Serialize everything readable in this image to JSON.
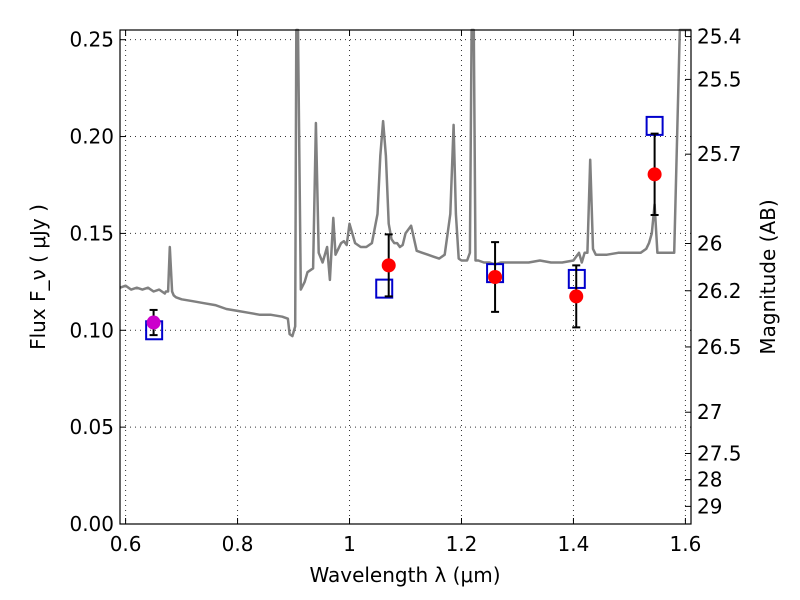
{
  "chart_data": {
    "type": "line",
    "xlabel": "Wavelength  λ (μm)",
    "ylabel": "Flux  F_ν  ( μJy )",
    "ylabel_right": "Magnitude (AB)",
    "xlim": [
      0.59,
      1.61
    ],
    "ylim": [
      0.0,
      0.255
    ],
    "grid": true,
    "x_ticks": [
      0.6,
      0.8,
      1.0,
      1.2,
      1.4,
      1.6
    ],
    "x_tick_labels": [
      "0.6",
      "0.8",
      "1",
      "1.2",
      "1.4",
      "1.6"
    ],
    "y_ticks": [
      0.0,
      0.05,
      0.1,
      0.15,
      0.2,
      0.25
    ],
    "y_tick_labels": [
      "0.00",
      "0.05",
      "0.10",
      "0.15",
      "0.20",
      "0.25"
    ],
    "right_ticks": [
      {
        "label": "25.4",
        "flux": 0.2516
      },
      {
        "label": "25.5",
        "flux": 0.2295
      },
      {
        "label": "25.7",
        "flux": 0.1909
      },
      {
        "label": "26",
        "flux": 0.1448
      },
      {
        "label": "26.2",
        "flux": 0.1204
      },
      {
        "label": "26.5",
        "flux": 0.0914
      },
      {
        "label": "27",
        "flux": 0.0577
      },
      {
        "label": "27.5",
        "flux": 0.0364
      },
      {
        "label": "28",
        "flux": 0.0229
      },
      {
        "label": "29",
        "flux": 0.0091
      }
    ],
    "series": [
      {
        "kind": "model-spectrum",
        "color": "#808080",
        "x": [
          0.59,
          0.6,
          0.61,
          0.62,
          0.63,
          0.64,
          0.65,
          0.66,
          0.67,
          0.672,
          0.676,
          0.679,
          0.683,
          0.686,
          0.69,
          0.7,
          0.72,
          0.74,
          0.76,
          0.78,
          0.8,
          0.82,
          0.84,
          0.86,
          0.88,
          0.89,
          0.893,
          0.898,
          0.903,
          0.905,
          0.908,
          0.913,
          0.92,
          0.925,
          0.935,
          0.94,
          0.945,
          0.952,
          0.96,
          0.965,
          0.971,
          0.975,
          0.985,
          0.99,
          0.995,
          1.0,
          1.01,
          1.02,
          1.03,
          1.04,
          1.05,
          1.055,
          1.06,
          1.065,
          1.07,
          1.075,
          1.08,
          1.085,
          1.09,
          1.095,
          1.1,
          1.11,
          1.12,
          1.13,
          1.14,
          1.15,
          1.16,
          1.17,
          1.18,
          1.186,
          1.19,
          1.195,
          1.2,
          1.21,
          1.215,
          1.218,
          1.222,
          1.225,
          1.23,
          1.24,
          1.25,
          1.26,
          1.27,
          1.28,
          1.3,
          1.32,
          1.34,
          1.36,
          1.38,
          1.4,
          1.41,
          1.415,
          1.42,
          1.425,
          1.43,
          1.435,
          1.44,
          1.46,
          1.48,
          1.5,
          1.52,
          1.53,
          1.535,
          1.54,
          1.545,
          1.55,
          1.56,
          1.57,
          1.58,
          1.59,
          1.6,
          1.61
        ],
        "y": [
          0.122,
          0.123,
          0.121,
          0.122,
          0.121,
          0.122,
          0.12,
          0.121,
          0.119,
          0.12,
          0.12,
          0.143,
          0.12,
          0.118,
          0.117,
          0.116,
          0.115,
          0.114,
          0.113,
          0.111,
          0.11,
          0.109,
          0.108,
          0.108,
          0.107,
          0.106,
          0.098,
          0.097,
          0.102,
          0.255,
          0.255,
          0.121,
          0.125,
          0.13,
          0.132,
          0.207,
          0.14,
          0.135,
          0.143,
          0.126,
          0.158,
          0.139,
          0.145,
          0.146,
          0.144,
          0.155,
          0.145,
          0.143,
          0.143,
          0.145,
          0.16,
          0.19,
          0.208,
          0.19,
          0.155,
          0.147,
          0.145,
          0.145,
          0.143,
          0.144,
          0.15,
          0.154,
          0.141,
          0.14,
          0.139,
          0.138,
          0.137,
          0.139,
          0.16,
          0.206,
          0.16,
          0.137,
          0.136,
          0.136,
          0.14,
          0.255,
          0.255,
          0.136,
          0.136,
          0.135,
          0.135,
          0.134,
          0.135,
          0.135,
          0.135,
          0.135,
          0.136,
          0.135,
          0.135,
          0.136,
          0.14,
          0.135,
          0.14,
          0.14,
          0.188,
          0.142,
          0.139,
          0.139,
          0.14,
          0.14,
          0.14,
          0.142,
          0.145,
          0.15,
          0.165,
          0.14,
          0.14,
          0.14,
          0.14,
          0.255,
          0.255,
          0.255
        ]
      },
      {
        "kind": "observed",
        "color": "#cc00cc",
        "x": [
          0.65
        ],
        "y": [
          0.104
        ],
        "yerr": [
          [
            0.0975,
            0.1105
          ]
        ]
      },
      {
        "kind": "observed",
        "color": "#ff0000",
        "x": [
          1.07,
          1.26,
          1.405,
          1.545
        ],
        "y": [
          0.1335,
          0.1275,
          0.1175,
          0.1805
        ],
        "yerr": [
          [
            0.1175,
            0.1495
          ],
          [
            0.1095,
            0.1455
          ],
          [
            0.1015,
            0.1335
          ],
          [
            0.1595,
            0.2015
          ]
        ]
      },
      {
        "kind": "model-bandpass",
        "color": "#0000cc",
        "marker": "open-square",
        "x": [
          0.651,
          1.062,
          1.26,
          1.406,
          1.545
        ],
        "y": [
          0.1,
          0.1215,
          0.1295,
          0.1265,
          0.2055
        ]
      }
    ]
  }
}
